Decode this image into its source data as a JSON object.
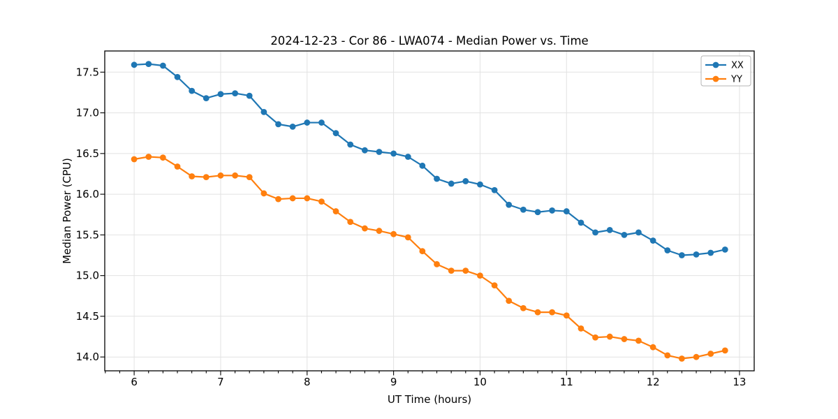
{
  "chart_data": {
    "type": "line",
    "title": "2024-12-23 - Cor 86 - LWA074 - Median Power vs. Time",
    "xlabel": "UT Time (hours)",
    "ylabel": "Median Power (CPU)",
    "xlim": [
      5.66,
      13.17
    ],
    "ylim": [
      13.83,
      17.76
    ],
    "grid": true,
    "legend_position": "upper right",
    "x_ticks": [
      6,
      7,
      8,
      9,
      10,
      11,
      12,
      13
    ],
    "x_tick_labels": [
      "6",
      "7",
      "8",
      "9",
      "10",
      "11",
      "12",
      "13"
    ],
    "x_minor_tick_step_hours": 0.1667,
    "y_ticks": [
      14.0,
      14.5,
      15.0,
      15.5,
      16.0,
      16.5,
      17.0,
      17.5
    ],
    "y_tick_labels": [
      "14.0",
      "14.5",
      "15.0",
      "15.5",
      "16.0",
      "16.5",
      "17.0",
      "17.5"
    ],
    "x": [
      6,
      6.167,
      6.333,
      6.5,
      6.667,
      6.833,
      7,
      7.167,
      7.333,
      7.5,
      7.667,
      7.833,
      8,
      8.167,
      8.333,
      8.5,
      8.667,
      8.833,
      9,
      9.167,
      9.333,
      9.5,
      9.667,
      9.833,
      10,
      10.167,
      10.333,
      10.5,
      10.667,
      10.833,
      11,
      11.167,
      11.333,
      11.5,
      11.667,
      11.833,
      12,
      12.167,
      12.333,
      12.5,
      12.667,
      12.833
    ],
    "series": [
      {
        "name": "XX",
        "color": "#1f77b4",
        "values": [
          17.59,
          17.6,
          17.58,
          17.44,
          17.27,
          17.18,
          17.23,
          17.24,
          17.21,
          17.01,
          16.86,
          16.83,
          16.88,
          16.88,
          16.75,
          16.61,
          16.54,
          16.52,
          16.5,
          16.46,
          16.35,
          16.19,
          16.13,
          16.16,
          16.12,
          16.05,
          15.87,
          15.81,
          15.78,
          15.8,
          15.79,
          15.65,
          15.53,
          15.56,
          15.5,
          15.53,
          15.43,
          15.31,
          15.25,
          15.26,
          15.28,
          15.32
        ]
      },
      {
        "name": "YY",
        "color": "#ff7f0e",
        "values": [
          16.43,
          16.46,
          16.45,
          16.34,
          16.22,
          16.21,
          16.23,
          16.23,
          16.21,
          16.01,
          15.94,
          15.95,
          15.95,
          15.91,
          15.79,
          15.66,
          15.58,
          15.55,
          15.51,
          15.47,
          15.3,
          15.14,
          15.06,
          15.06,
          15.0,
          14.88,
          14.69,
          14.6,
          14.55,
          14.55,
          14.51,
          14.35,
          14.24,
          14.25,
          14.22,
          14.2,
          14.12,
          14.02,
          13.98,
          14.0,
          14.04,
          14.08
        ]
      }
    ],
    "colors": {
      "background": "#ffffff",
      "grid": "#e2e2e2",
      "spine": "#000000",
      "legend_border": "#b4b4b4"
    }
  }
}
